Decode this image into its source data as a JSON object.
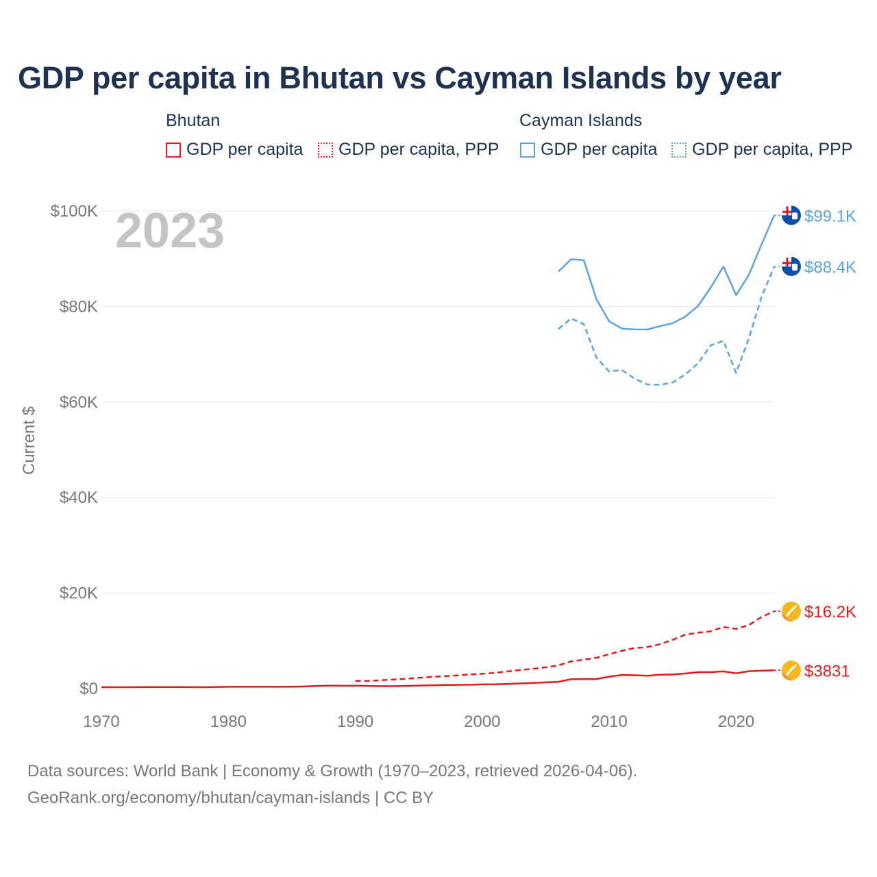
{
  "title": "GDP per capita in Bhutan vs Cayman Islands by year",
  "legend": {
    "groups": [
      {
        "name": "Bhutan",
        "color": "#e8191a",
        "items": [
          "GDP per capita",
          "GDP per capita, PPP"
        ]
      },
      {
        "name": "Cayman Islands",
        "color": "#5ba3e0",
        "items": [
          "GDP per capita",
          "GDP per capita, PPP"
        ]
      }
    ]
  },
  "year_label": "2023",
  "footer": {
    "line1": "Data sources: World Bank | Economy & Growth (1970–2023, retrieved 2026-04-06).",
    "line2": "GeoRank.org/economy/bhutan/cayman-islands | CC BY"
  },
  "chart_data": {
    "type": "line",
    "title": "GDP per capita in Bhutan vs Cayman Islands by year",
    "xlabel": "",
    "ylabel": "Current $",
    "xlim": [
      1970,
      2023
    ],
    "ylim": [
      0,
      100000
    ],
    "x_ticks": [
      1970,
      1980,
      1990,
      2000,
      2010,
      2020
    ],
    "y_ticks": [
      {
        "value": 0,
        "label": "$0"
      },
      {
        "value": 20000,
        "label": "$20K"
      },
      {
        "value": 40000,
        "label": "$40K"
      },
      {
        "value": 60000,
        "label": "$60K"
      },
      {
        "value": 80000,
        "label": "$80K"
      },
      {
        "value": 100000,
        "label": "$100K"
      }
    ],
    "grid": true,
    "series": [
      {
        "name": "Bhutan GDP per capita",
        "color": "#e8191a",
        "dash": "solid",
        "end_label": "$3831",
        "points": [
          [
            1970,
            280
          ],
          [
            1972,
            290
          ],
          [
            1974,
            320
          ],
          [
            1976,
            310
          ],
          [
            1978,
            290
          ],
          [
            1980,
            380
          ],
          [
            1982,
            400
          ],
          [
            1984,
            380
          ],
          [
            1985,
            400
          ],
          [
            1986,
            450
          ],
          [
            1987,
            560
          ],
          [
            1988,
            600
          ],
          [
            1989,
            590
          ],
          [
            1990,
            600
          ],
          [
            1991,
            560
          ],
          [
            1992,
            500
          ],
          [
            1993,
            500
          ],
          [
            1994,
            560
          ],
          [
            1995,
            630
          ],
          [
            1996,
            680
          ],
          [
            1997,
            750
          ],
          [
            1998,
            770
          ],
          [
            1999,
            800
          ],
          [
            2000,
            870
          ],
          [
            2001,
            900
          ],
          [
            2002,
            960
          ],
          [
            2003,
            1070
          ],
          [
            2004,
            1170
          ],
          [
            2005,
            1300
          ],
          [
            2006,
            1420
          ],
          [
            2007,
            1950
          ],
          [
            2008,
            2010
          ],
          [
            2009,
            2000
          ],
          [
            2010,
            2500
          ],
          [
            2011,
            2850
          ],
          [
            2012,
            2800
          ],
          [
            2013,
            2700
          ],
          [
            2014,
            2900
          ],
          [
            2015,
            2950
          ],
          [
            2016,
            3150
          ],
          [
            2017,
            3450
          ],
          [
            2018,
            3450
          ],
          [
            2019,
            3600
          ],
          [
            2020,
            3200
          ],
          [
            2021,
            3650
          ],
          [
            2022,
            3750
          ],
          [
            2023,
            3831
          ]
        ]
      },
      {
        "name": "Bhutan GDP per capita, PPP",
        "color": "#e8191a",
        "dash": "dashed",
        "end_label": "$16.2K",
        "points": [
          [
            1990,
            1600
          ],
          [
            1991,
            1600
          ],
          [
            1992,
            1750
          ],
          [
            1993,
            1900
          ],
          [
            1994,
            2050
          ],
          [
            1995,
            2250
          ],
          [
            1996,
            2450
          ],
          [
            1997,
            2600
          ],
          [
            1998,
            2750
          ],
          [
            1999,
            2950
          ],
          [
            2000,
            3100
          ],
          [
            2001,
            3300
          ],
          [
            2002,
            3600
          ],
          [
            2003,
            3900
          ],
          [
            2004,
            4150
          ],
          [
            2005,
            4450
          ],
          [
            2006,
            4850
          ],
          [
            2007,
            5700
          ],
          [
            2008,
            6050
          ],
          [
            2009,
            6450
          ],
          [
            2010,
            7200
          ],
          [
            2011,
            7900
          ],
          [
            2012,
            8500
          ],
          [
            2013,
            8700
          ],
          [
            2014,
            9300
          ],
          [
            2015,
            10200
          ],
          [
            2016,
            11300
          ],
          [
            2017,
            11700
          ],
          [
            2018,
            12000
          ],
          [
            2019,
            12900
          ],
          [
            2020,
            12500
          ],
          [
            2021,
            13300
          ],
          [
            2022,
            15000
          ],
          [
            2023,
            16200
          ]
        ]
      },
      {
        "name": "Cayman Islands GDP per capita",
        "color": "#5ba3e0",
        "dash": "solid",
        "end_label": "$99.1K",
        "points": [
          [
            2006,
            87300
          ],
          [
            2007,
            89900
          ],
          [
            2008,
            89700
          ],
          [
            2009,
            81500
          ],
          [
            2010,
            76900
          ],
          [
            2011,
            75400
          ],
          [
            2012,
            75200
          ],
          [
            2013,
            75200
          ],
          [
            2014,
            75900
          ],
          [
            2015,
            76500
          ],
          [
            2016,
            77900
          ],
          [
            2017,
            80100
          ],
          [
            2018,
            84000
          ],
          [
            2019,
            88400
          ],
          [
            2020,
            82400
          ],
          [
            2021,
            86600
          ],
          [
            2022,
            93000
          ],
          [
            2023,
            99100
          ]
        ]
      },
      {
        "name": "Cayman Islands GDP per capita, PPP",
        "color": "#5ba3e0",
        "dash": "dashed",
        "end_label": "$88.4K",
        "points": [
          [
            2006,
            75300
          ],
          [
            2007,
            77500
          ],
          [
            2008,
            76300
          ],
          [
            2009,
            69300
          ],
          [
            2010,
            66400
          ],
          [
            2011,
            66700
          ],
          [
            2012,
            64900
          ],
          [
            2013,
            63700
          ],
          [
            2014,
            63600
          ],
          [
            2015,
            64100
          ],
          [
            2016,
            65800
          ],
          [
            2017,
            68100
          ],
          [
            2018,
            71900
          ],
          [
            2019,
            72800
          ],
          [
            2020,
            66100
          ],
          [
            2021,
            73300
          ],
          [
            2022,
            82000
          ],
          [
            2023,
            88400
          ]
        ]
      }
    ]
  }
}
